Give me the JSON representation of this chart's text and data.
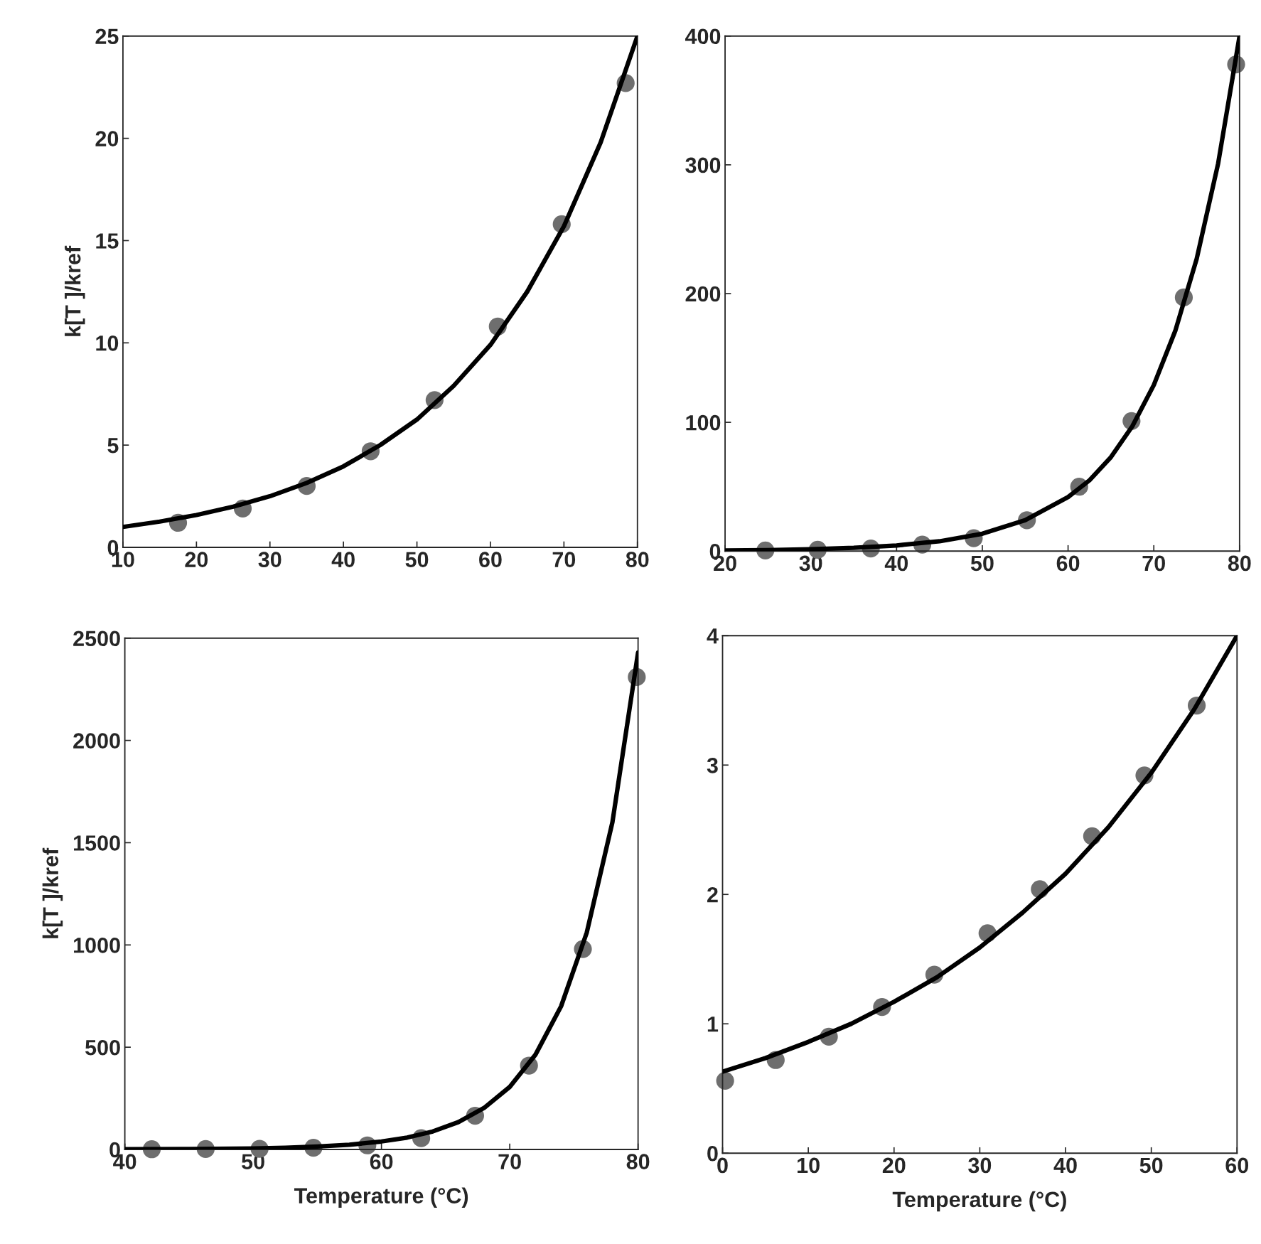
{
  "chart_data": [
    {
      "type": "scatter",
      "ylabel": "k[T ]/kref",
      "xlim": [
        10,
        80
      ],
      "xticks": [
        10,
        20,
        30,
        40,
        50,
        60,
        70,
        80
      ],
      "ylim": [
        0,
        25
      ],
      "yticks": [
        0,
        5,
        10,
        15,
        20,
        25
      ],
      "grid": false,
      "series": [
        {
          "type": "scatter",
          "marker": "circle",
          "color": "#6e6e6e",
          "x": [
            17.5,
            26.3,
            35,
            43.7,
            52.4,
            61,
            69.7,
            78.4
          ],
          "values": [
            1.2,
            1.9,
            3.0,
            4.7,
            7.2,
            10.8,
            15.8,
            22.7
          ]
        },
        {
          "type": "line",
          "color": "#000000",
          "x": [
            10,
            15,
            20,
            25,
            30,
            35,
            40,
            45,
            50,
            55,
            60,
            65,
            70,
            75,
            80
          ],
          "values": [
            1.0,
            1.26,
            1.58,
            1.99,
            2.5,
            3.15,
            3.96,
            5.0,
            6.25,
            7.9,
            9.9,
            12.5,
            15.7,
            19.8,
            25.0
          ]
        }
      ]
    },
    {
      "type": "scatter",
      "xlim": [
        20,
        80
      ],
      "xticks": [
        20,
        30,
        40,
        50,
        60,
        70,
        80
      ],
      "ylim": [
        0,
        400
      ],
      "yticks": [
        0,
        100,
        200,
        300,
        400
      ],
      "grid": false,
      "series": [
        {
          "type": "scatter",
          "marker": "circle",
          "color": "#6e6e6e",
          "x": [
            24.7,
            30.8,
            37,
            43,
            49,
            55.2,
            61.3,
            67.4,
            73.5,
            79.6
          ],
          "values": [
            0.5,
            1,
            2,
            5,
            10,
            24,
            50,
            101,
            197,
            378
          ]
        },
        {
          "type": "line",
          "color": "#000000",
          "x": [
            20,
            25,
            30,
            35,
            40,
            45,
            50,
            55,
            60,
            62.5,
            65,
            67.5,
            70,
            72.5,
            75,
            77.5,
            80
          ],
          "values": [
            0.5,
            0.8,
            1.4,
            2.5,
            4.4,
            7.6,
            13.5,
            24,
            42,
            55,
            73,
            97,
            129,
            171,
            227,
            301,
            400
          ]
        }
      ]
    },
    {
      "type": "scatter",
      "xlabel": "Temperature (°C)",
      "ylabel": "k[T ]/kref",
      "xlim": [
        40,
        80
      ],
      "xticks": [
        40,
        50,
        60,
        70,
        80
      ],
      "ylim": [
        0,
        2500
      ],
      "yticks": [
        0,
        500,
        1000,
        1500,
        2000,
        2500
      ],
      "grid": false,
      "series": [
        {
          "type": "scatter",
          "marker": "circle",
          "color": "#6e6e6e",
          "x": [
            42.1,
            46.3,
            50.5,
            54.7,
            58.9,
            63.1,
            67.3,
            71.5,
            75.7,
            79.9
          ],
          "values": [
            1,
            2,
            3,
            8,
            20,
            55,
            165,
            410,
            980,
            2310
          ]
        },
        {
          "type": "line",
          "color": "#000000",
          "x": [
            40,
            45,
            50,
            52.5,
            55,
            57.5,
            60,
            62,
            64,
            66,
            68,
            70,
            72,
            74,
            76,
            78,
            80
          ],
          "values": [
            1,
            2,
            5,
            8,
            14,
            23,
            39,
            58,
            88,
            134,
            203,
            306,
            463,
            700,
            1060,
            1600,
            2430
          ]
        }
      ]
    },
    {
      "type": "scatter",
      "xlabel": "Temperature (°C)",
      "xlim": [
        0,
        60
      ],
      "xticks": [
        0,
        10,
        20,
        30,
        40,
        50,
        60
      ],
      "ylim": [
        0,
        4
      ],
      "yticks": [
        0,
        1,
        2,
        3,
        4
      ],
      "grid": false,
      "series": [
        {
          "type": "scatter",
          "marker": "circle",
          "color": "#6e6e6e",
          "x": [
            0.3,
            6.2,
            12.4,
            18.6,
            24.7,
            30.9,
            37,
            43.1,
            49.2,
            55.3
          ],
          "values": [
            0.56,
            0.72,
            0.9,
            1.13,
            1.38,
            1.7,
            2.04,
            2.45,
            2.92,
            3.46
          ]
        },
        {
          "type": "line",
          "color": "#000000",
          "x": [
            0,
            5,
            10,
            15,
            20,
            25,
            30,
            35,
            40,
            45,
            50,
            55,
            60
          ],
          "values": [
            0.63,
            0.735,
            0.86,
            1.0,
            1.17,
            1.36,
            1.59,
            1.86,
            2.16,
            2.52,
            2.94,
            3.43,
            4.0
          ]
        }
      ]
    }
  ]
}
